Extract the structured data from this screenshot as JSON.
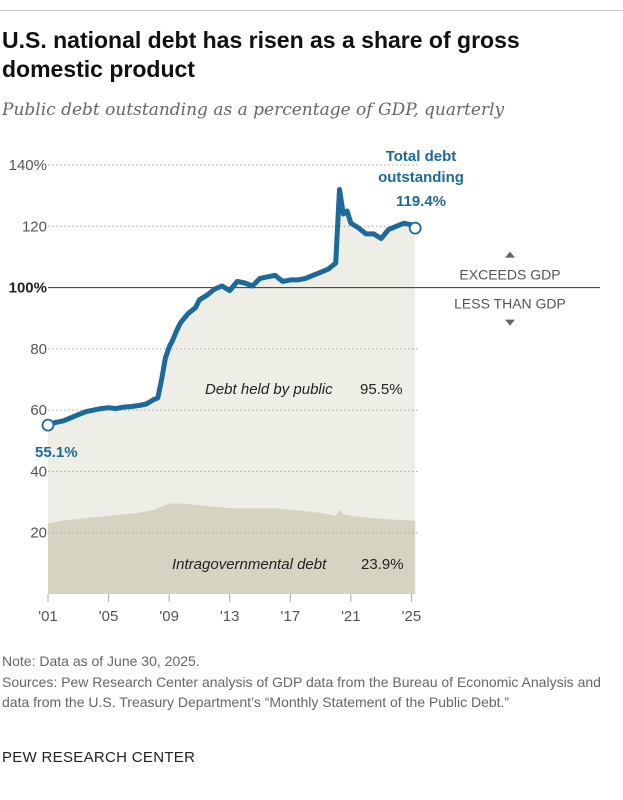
{
  "title": "U.S. national debt has risen as a share of gross domestic product",
  "subtitle": "Public debt outstanding as a percentage of GDP, quarterly",
  "note": "Note: Data as of June 30, 2025.",
  "sources": "Sources: Pew Research Center analysis of GDP data from the Bureau of Economic Analysis and data from the U.S. Treasury Department’s “Monthly Statement of the Public Debt.”",
  "brand": "PEW RESEARCH CENTER",
  "colors": {
    "total_line": "#1c6a9b",
    "public_area": "#efeee6",
    "intragov_area": "#d7d3c2",
    "grid": "#a9a9a9",
    "axis_text": "#555555"
  },
  "chart_data": {
    "type": "area",
    "xlim": [
      2001,
      2025.5
    ],
    "ylim": [
      0,
      140
    ],
    "x_ticks": [
      {
        "value": 2001,
        "label": "'01"
      },
      {
        "value": 2005,
        "label": "'05"
      },
      {
        "value": 2009,
        "label": "'09"
      },
      {
        "value": 2013,
        "label": "'13"
      },
      {
        "value": 2017,
        "label": "'17"
      },
      {
        "value": 2021,
        "label": "'21"
      },
      {
        "value": 2025,
        "label": "'25"
      }
    ],
    "y_ticks": [
      {
        "value": 20,
        "label": "20"
      },
      {
        "value": 40,
        "label": "40"
      },
      {
        "value": 60,
        "label": "60"
      },
      {
        "value": 80,
        "label": "80"
      },
      {
        "value": 100,
        "label": "100%"
      },
      {
        "value": 120,
        "label": "120"
      },
      {
        "value": 140,
        "label": "140%"
      }
    ],
    "grid": true,
    "reference_line": {
      "value": 100,
      "label_above": "EXCEEDS GDP",
      "label_below": "LESS THAN GDP"
    },
    "series": [
      {
        "name": "Total debt outstanding",
        "x": [
          2001,
          2001.5,
          2002,
          2002.5,
          2003,
          2003.5,
          2004,
          2004.5,
          2005,
          2005.5,
          2006,
          2006.5,
          2007,
          2007.5,
          2008,
          2008.25,
          2008.5,
          2008.75,
          2009,
          2009.25,
          2009.5,
          2009.75,
          2010,
          2010.25,
          2010.5,
          2010.75,
          2011,
          2011.5,
          2012,
          2012.5,
          2013,
          2013.5,
          2014,
          2014.5,
          2015,
          2015.5,
          2016,
          2016.5,
          2017,
          2017.5,
          2018,
          2018.5,
          2019,
          2019.5,
          2020,
          2020.25,
          2020.5,
          2020.75,
          2021,
          2021.5,
          2022,
          2022.5,
          2023,
          2023.5,
          2024,
          2024.5,
          2025,
          2025.25
        ],
        "values": [
          55.1,
          56,
          56.5,
          57.5,
          58.5,
          59.5,
          60,
          60.5,
          60.8,
          60.5,
          61,
          61.2,
          61.5,
          62,
          63.5,
          64,
          70,
          77,
          80.5,
          83,
          86,
          88.5,
          90,
          91.5,
          92.5,
          93.5,
          96,
          97.5,
          99.5,
          100.5,
          99,
          102,
          101.5,
          100.5,
          103,
          103.5,
          104,
          102,
          102.5,
          102.5,
          103,
          104,
          105,
          106,
          108,
          132,
          124,
          125,
          121,
          119.5,
          117.5,
          117.5,
          116,
          119,
          120,
          121,
          120.5,
          119.4
        ]
      },
      {
        "name": "Debt held by public",
        "value_label": "95.5%"
      },
      {
        "name": "Intragovernmental debt",
        "value_label": "23.9%",
        "x": [
          2001,
          2002,
          2003,
          2004,
          2005,
          2006,
          2007,
          2008,
          2009,
          2010,
          2011,
          2012,
          2013,
          2014,
          2015,
          2016,
          2017,
          2018,
          2019,
          2020,
          2020.25,
          2020.5,
          2021,
          2022,
          2023,
          2024,
          2025.25
        ],
        "values": [
          23,
          24,
          24.5,
          25,
          25.5,
          26,
          26.5,
          27.5,
          29.5,
          29.5,
          29,
          28.5,
          28,
          28,
          28,
          28,
          27.5,
          27,
          26.5,
          25.5,
          27.5,
          26,
          25.5,
          25,
          24.5,
          24.2,
          23.9
        ]
      }
    ],
    "annotations": {
      "start_label": "55.1%",
      "end_label_line1": "Total debt",
      "end_label_line2": "outstanding",
      "end_value": "119.4%"
    }
  }
}
